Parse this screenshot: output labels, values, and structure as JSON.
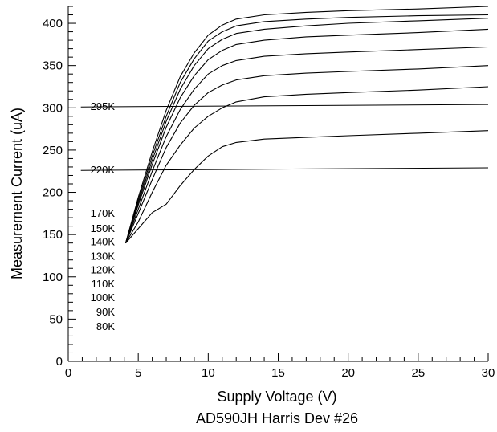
{
  "chart_data": {
    "type": "line",
    "xlabel": "Supply Voltage (V)",
    "ylabel": "Measurement Current (uA)",
    "caption": "AD590JH Harris Dev #26",
    "xlim": [
      0,
      30
    ],
    "ylim": [
      0,
      420
    ],
    "x_ticks": [
      0,
      5,
      10,
      15,
      20,
      25,
      30
    ],
    "y_ticks": [
      0,
      50,
      100,
      150,
      200,
      250,
      300,
      350,
      400
    ],
    "grid": false,
    "temperature_labels": [
      {
        "label": "295K",
        "y": 301
      },
      {
        "label": "220K",
        "y": 226
      },
      {
        "label": "170K",
        "y": 175
      },
      {
        "label": "150K",
        "y": 157
      },
      {
        "label": "140K",
        "y": 141
      },
      {
        "label": "130K",
        "y": 124
      },
      {
        "label": "120K",
        "y": 108
      },
      {
        "label": "110K",
        "y": 91
      },
      {
        "label": "100K",
        "y": 75
      },
      {
        "label": "90K",
        "y": 58
      },
      {
        "label": "80K",
        "y": 41
      }
    ],
    "reference_lines": [
      {
        "name": "295K",
        "points": [
          [
            0.9,
            301
          ],
          [
            30,
            304
          ]
        ]
      },
      {
        "name": "220K",
        "points": [
          [
            0.9,
            226
          ],
          [
            30,
            229
          ]
        ]
      }
    ],
    "series": [
      {
        "points": [
          [
            4.1,
            140
          ],
          [
            5,
            157
          ],
          [
            6,
            176
          ],
          [
            7,
            186
          ],
          [
            8,
            208
          ],
          [
            9,
            227
          ],
          [
            10,
            243
          ],
          [
            11,
            254
          ],
          [
            12,
            259
          ],
          [
            14,
            263
          ],
          [
            17,
            265
          ],
          [
            20,
            267
          ],
          [
            25,
            270
          ],
          [
            30,
            273
          ]
        ]
      },
      {
        "points": [
          [
            4.1,
            140
          ],
          [
            5,
            165
          ],
          [
            6,
            200
          ],
          [
            7,
            232
          ],
          [
            8,
            256
          ],
          [
            9,
            276
          ],
          [
            10,
            290
          ],
          [
            11,
            300
          ],
          [
            12,
            307
          ],
          [
            14,
            313
          ],
          [
            17,
            316
          ],
          [
            20,
            318
          ],
          [
            25,
            321
          ],
          [
            30,
            325
          ]
        ]
      },
      {
        "points": [
          [
            4.1,
            140
          ],
          [
            5,
            175
          ],
          [
            6,
            215
          ],
          [
            7,
            253
          ],
          [
            8,
            282
          ],
          [
            9,
            303
          ],
          [
            10,
            318
          ],
          [
            11,
            327
          ],
          [
            12,
            333
          ],
          [
            14,
            338
          ],
          [
            17,
            341
          ],
          [
            20,
            343
          ],
          [
            25,
            346
          ],
          [
            30,
            350
          ]
        ]
      },
      {
        "points": [
          [
            4.1,
            140
          ],
          [
            5,
            180
          ],
          [
            6,
            225
          ],
          [
            7,
            266
          ],
          [
            8,
            298
          ],
          [
            9,
            322
          ],
          [
            10,
            340
          ],
          [
            11,
            350
          ],
          [
            12,
            356
          ],
          [
            14,
            361
          ],
          [
            17,
            364
          ],
          [
            20,
            366
          ],
          [
            25,
            369
          ],
          [
            30,
            372
          ]
        ]
      },
      {
        "points": [
          [
            4.1,
            140
          ],
          [
            5,
            185
          ],
          [
            6,
            233
          ],
          [
            7,
            277
          ],
          [
            8,
            312
          ],
          [
            9,
            338
          ],
          [
            10,
            357
          ],
          [
            11,
            368
          ],
          [
            12,
            375
          ],
          [
            14,
            380
          ],
          [
            17,
            384
          ],
          [
            20,
            386
          ],
          [
            25,
            389
          ],
          [
            30,
            393
          ]
        ]
      },
      {
        "points": [
          [
            4.1,
            140
          ],
          [
            5,
            188
          ],
          [
            6,
            238
          ],
          [
            7,
            284
          ],
          [
            8,
            322
          ],
          [
            9,
            350
          ],
          [
            10,
            370
          ],
          [
            11,
            381
          ],
          [
            12,
            388
          ],
          [
            14,
            393
          ],
          [
            17,
            397
          ],
          [
            20,
            400
          ],
          [
            25,
            403
          ],
          [
            30,
            406
          ]
        ]
      },
      {
        "points": [
          [
            4.1,
            140
          ],
          [
            5,
            191
          ],
          [
            6,
            243
          ],
          [
            7,
            290
          ],
          [
            8,
            330
          ],
          [
            9,
            358
          ],
          [
            10,
            379
          ],
          [
            11,
            390
          ],
          [
            12,
            397
          ],
          [
            14,
            402
          ],
          [
            17,
            405
          ],
          [
            20,
            407
          ],
          [
            25,
            409
          ],
          [
            30,
            410
          ]
        ]
      },
      {
        "points": [
          [
            4.1,
            140
          ],
          [
            5,
            194
          ],
          [
            6,
            248
          ],
          [
            7,
            297
          ],
          [
            8,
            337
          ],
          [
            9,
            365
          ],
          [
            10,
            386
          ],
          [
            11,
            398
          ],
          [
            12,
            405
          ],
          [
            14,
            410
          ],
          [
            17,
            413
          ],
          [
            20,
            415
          ],
          [
            25,
            417
          ],
          [
            30,
            420
          ]
        ]
      }
    ]
  }
}
